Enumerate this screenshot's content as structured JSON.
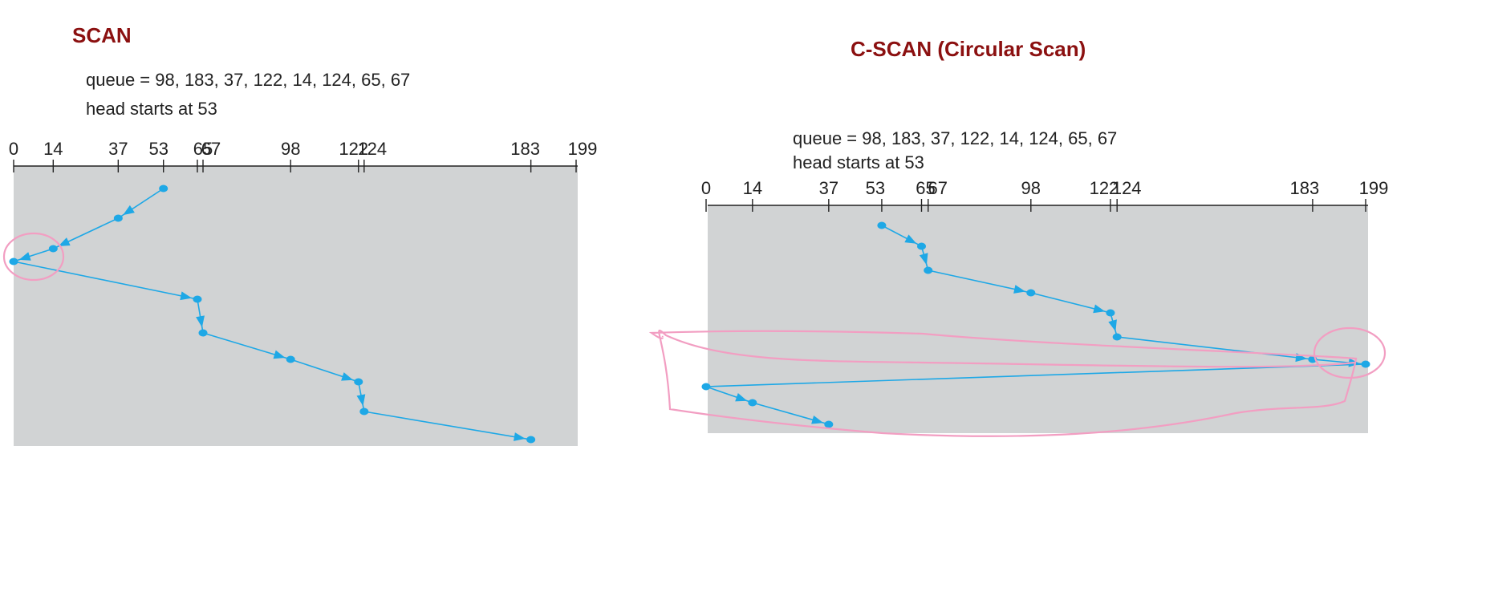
{
  "diagrams": [
    {
      "key": "scan",
      "title": "SCAN",
      "queue_text": "queue = 98, 183, 37, 122, 14, 124, 65, 67",
      "head_text": "head starts at 53",
      "axis_ticks": [
        "0",
        "14",
        "37",
        "53",
        "65",
        "67",
        "98",
        "122",
        "124",
        "183",
        "199"
      ],
      "axis_min": 0,
      "axis_max": 199,
      "head_start": 53,
      "service_order": [
        53,
        37,
        14,
        0,
        65,
        67,
        98,
        122,
        124,
        183
      ],
      "annotation": "pink circle around 0"
    },
    {
      "key": "cscan",
      "title": "C-SCAN (Circular Scan)",
      "queue_text": "queue = 98, 183, 37, 122, 14, 124, 65, 67",
      "head_text": "head starts at 53",
      "axis_ticks": [
        "0",
        "14",
        "37",
        "53",
        "65",
        "67",
        "98",
        "122",
        "124",
        "183",
        "199"
      ],
      "axis_min": 0,
      "axis_max": 199,
      "head_start": 53,
      "service_order": [
        53,
        65,
        67,
        98,
        122,
        124,
        183,
        199,
        0,
        14,
        37
      ],
      "annotation": "pink circle around 199 and hand-drawn loop showing wrap-around"
    }
  ],
  "colors": {
    "title": "#8b1010",
    "path": "#1ea8e6",
    "plot_background": "#d1d3d4",
    "annotation": "#f29ec2"
  }
}
